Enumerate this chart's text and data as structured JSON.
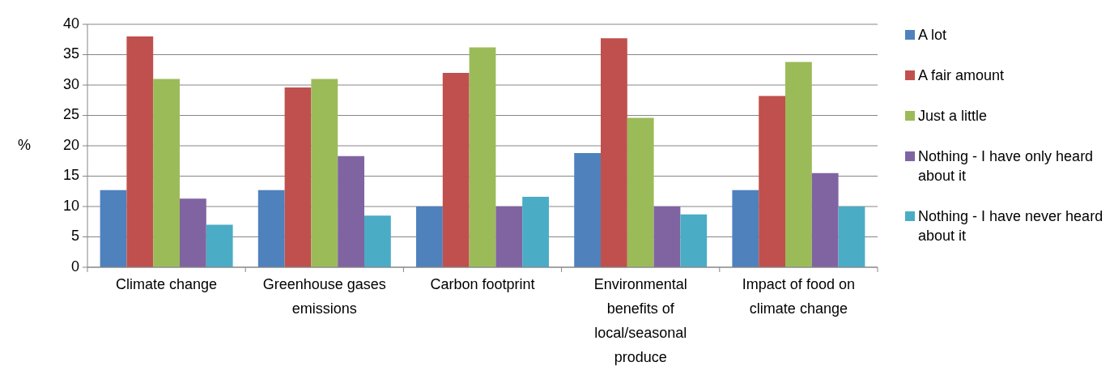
{
  "chart_data": {
    "type": "bar",
    "ylabel": "%",
    "categories": [
      "Climate change",
      "Greenhouse gases emissions",
      "Carbon footprint",
      "Environmental benefits of local/seasonal produce",
      "Impact of food on climate change"
    ],
    "series": [
      {
        "name": "A lot",
        "color": "#4f81bd",
        "values": [
          12.7,
          12.7,
          10,
          18.8,
          12.7
        ]
      },
      {
        "name": "A fair amount",
        "color": "#c0504d",
        "values": [
          38,
          29.6,
          32,
          37.7,
          28.2
        ]
      },
      {
        "name": "Just a little",
        "color": "#9bbb59",
        "values": [
          31,
          31,
          36.2,
          24.6,
          33.8
        ]
      },
      {
        "name": "Nothing - I have only heard about it",
        "color": "#8064a2",
        "values": [
          11.3,
          18.3,
          10,
          10,
          15.5
        ]
      },
      {
        "name": "Nothing - I have never heard about it",
        "color": "#4bacc6",
        "values": [
          7,
          8.5,
          11.6,
          8.7,
          10
        ]
      }
    ],
    "ylim": [
      0,
      40
    ],
    "yticks": [
      0,
      5,
      10,
      15,
      20,
      25,
      30,
      35,
      40
    ],
    "grid": "y",
    "legend": "right"
  }
}
